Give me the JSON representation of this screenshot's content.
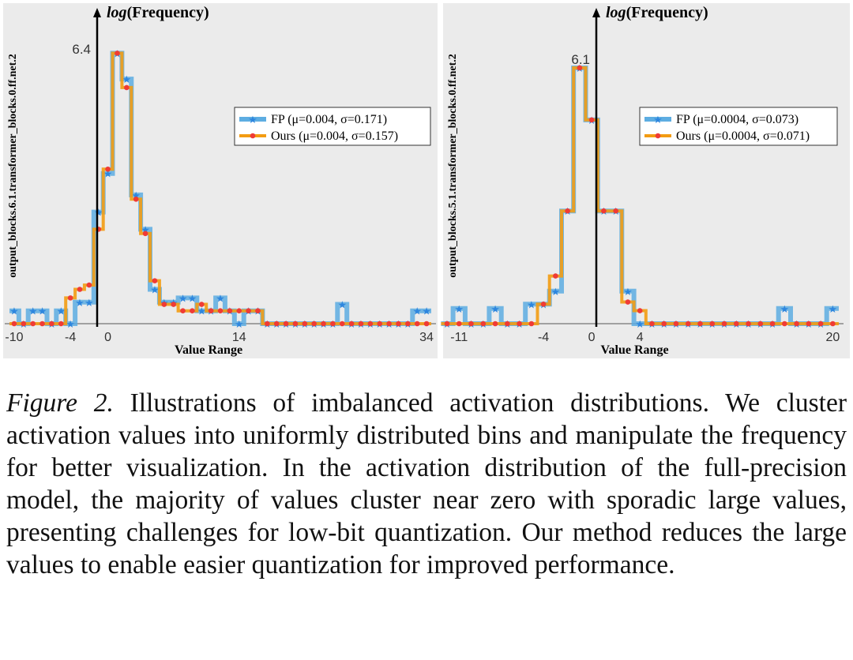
{
  "chart_data": [
    {
      "type": "line",
      "title": "log(Frequency)",
      "title_parts": {
        "italic": "log",
        "rest": "(Frequency)"
      },
      "xlabel": "Value Range",
      "ylabel": "output_blocks.6.1.transformer_blocks.0.ff.net.2",
      "peak_label": "6.4",
      "x_ticks": [
        "-10",
        "-4",
        "0",
        "14",
        "34"
      ],
      "tick_values": [
        -10,
        -4,
        0,
        14,
        34
      ],
      "xlim": [
        -10.5,
        34.5
      ],
      "ylim": [
        0,
        6.4
      ],
      "grid": false,
      "legend_position": "upper-right",
      "colors": {
        "FP": "#5dade2",
        "Ours": "#f39c12",
        "Ours_marker": "#ef3b36",
        "FP_marker": "#2e86de",
        "background": "#ebebeb"
      },
      "series": [
        {
          "name": "FP (μ=0.004, σ=0.171)",
          "x": [
            -10,
            -9,
            -8,
            -7,
            -6,
            -5,
            -4,
            -3,
            -2,
            -1,
            0,
            1,
            2,
            3,
            4,
            5,
            6,
            7,
            8,
            9,
            10,
            11,
            12,
            13,
            14,
            15,
            16,
            17,
            18,
            19,
            20,
            21,
            22,
            23,
            24,
            25,
            26,
            27,
            28,
            29,
            30,
            31,
            32,
            33,
            34
          ],
          "y": [
            0.3,
            0,
            0.3,
            0.3,
            0,
            0.3,
            0,
            0.5,
            0.5,
            2.6,
            3.5,
            6.3,
            5.7,
            3.0,
            2.2,
            0.8,
            0.5,
            0.5,
            0.6,
            0.6,
            0.3,
            0.3,
            0.6,
            0.3,
            0,
            0.3,
            0.3,
            0,
            0,
            0,
            0,
            0,
            0,
            0,
            0,
            0.45,
            0,
            0,
            0,
            0,
            0,
            0,
            0,
            0.3,
            0.3
          ]
        },
        {
          "name": "Ours (μ=0.004, σ=0.157)",
          "x": [
            -10,
            -9,
            -8,
            -7,
            -6,
            -5,
            -4,
            -3,
            -2,
            -1,
            0,
            1,
            2,
            3,
            4,
            5,
            6,
            7,
            8,
            9,
            10,
            11,
            12,
            13,
            14,
            15,
            16,
            17,
            18,
            19,
            20,
            21,
            22,
            23,
            24,
            25,
            26,
            27,
            28,
            29,
            30,
            31,
            32,
            33,
            34
          ],
          "y": [
            0,
            0,
            0,
            0,
            0,
            0,
            0.6,
            0.8,
            0.9,
            2.2,
            3.6,
            6.3,
            5.5,
            2.9,
            2.1,
            1.0,
            0.45,
            0.45,
            0.3,
            0.3,
            0.45,
            0.3,
            0.3,
            0.3,
            0.3,
            0.3,
            0.3,
            0,
            0,
            0,
            0,
            0,
            0,
            0,
            0,
            0,
            0,
            0,
            0,
            0,
            0,
            0,
            0,
            0,
            0
          ]
        }
      ]
    },
    {
      "type": "line",
      "title": "log(Frequency)",
      "title_parts": {
        "italic": "log",
        "rest": "(Frequency)"
      },
      "xlabel": "Value Range",
      "ylabel": "output_blocks.5.1.transformer_blocks.0.ff.net.2",
      "peak_label": "6.1",
      "x_ticks": [
        "-11",
        "-4",
        "0",
        "4",
        "20"
      ],
      "tick_values": [
        -11,
        -4,
        0,
        4,
        20
      ],
      "xlim": [
        -12,
        20.5
      ],
      "ylim": [
        0,
        6.1
      ],
      "grid": false,
      "legend_position": "upper-right",
      "colors": {
        "FP": "#5dade2",
        "Ours": "#f39c12",
        "Ours_marker": "#ef3b36",
        "FP_marker": "#2e86de",
        "background": "#ebebeb"
      },
      "series": [
        {
          "name": "FP (μ=0.0004, σ=0.073)",
          "x": [
            -12,
            -11,
            -10,
            -9,
            -8,
            -7,
            -6,
            -5,
            -4,
            -3,
            -2,
            -1,
            0,
            1,
            2,
            3,
            4,
            5,
            6,
            7,
            8,
            9,
            10,
            11,
            12,
            13,
            14,
            15,
            16,
            17,
            18,
            19,
            20
          ],
          "y": [
            0,
            0.35,
            0,
            0,
            0.35,
            0,
            0,
            0.45,
            0.45,
            0.75,
            2.6,
            5.9,
            4.7,
            2.6,
            2.6,
            0.75,
            0,
            0,
            0,
            0,
            0,
            0,
            0,
            0,
            0,
            0,
            0,
            0,
            0.35,
            0,
            0,
            0,
            0.35
          ]
        },
        {
          "name": "Ours (μ=0.0004, σ=0.071)",
          "x": [
            -12,
            -11,
            -10,
            -9,
            -8,
            -7,
            -6,
            -5,
            -4,
            -3,
            -2,
            -1,
            0,
            1,
            2,
            3,
            4,
            5,
            6,
            7,
            8,
            9,
            10,
            11,
            12,
            13,
            14,
            15,
            16,
            17,
            18,
            19,
            20
          ],
          "y": [
            0,
            0,
            0,
            0,
            0,
            0,
            0,
            0,
            0.45,
            1.1,
            2.6,
            5.9,
            4.7,
            2.6,
            2.6,
            0.5,
            0.3,
            0,
            0,
            0,
            0,
            0,
            0,
            0,
            0,
            0,
            0,
            0,
            0,
            0,
            0,
            0,
            0
          ]
        }
      ]
    }
  ],
  "caption": {
    "label": "Figure 2.",
    "text": " Illustrations of imbalanced activation distributions. We cluster activation values into uniformly distributed bins and manipulate the frequency for better visualization. In the activation distribution of the full-precision model, the majority of values cluster near zero with sporadic large values, presenting challenges for low-bit quantization. Our method reduces the large values to enable easier quantization for improved performance."
  }
}
